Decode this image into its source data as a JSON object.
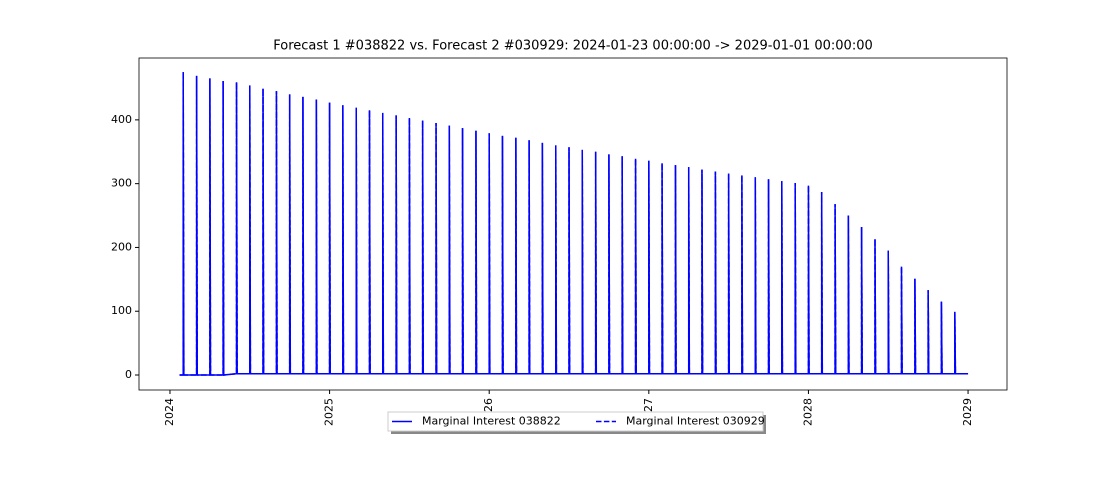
{
  "chart_data": {
    "type": "line",
    "title": "Forecast 1 #038822 vs. Forecast 2 #030929: 2024-01-23 00:00:00 -> 2029-01-01 00:00:00",
    "xlim": [
      2023.806,
      2029.244
    ],
    "ylim": [
      -23.5,
      497
    ],
    "xticks": [
      2024,
      2025,
      2026,
      2027,
      2028,
      2029
    ],
    "yticks": [
      0,
      100,
      200,
      300,
      400
    ],
    "legend": "lower center",
    "x": [
      2024.06,
      2024.083,
      2024.083,
      2024.087,
      2024.167,
      2024.167,
      2024.171,
      2024.25,
      2024.25,
      2024.254,
      2024.333,
      2024.333,
      2024.337,
      2024.417,
      2024.417,
      2024.421,
      2024.5,
      2024.5,
      2024.504,
      2024.583,
      2024.583,
      2024.587,
      2024.667,
      2024.667,
      2024.671,
      2024.75,
      2024.75,
      2024.754,
      2024.833,
      2024.833,
      2024.837,
      2024.917,
      2024.917,
      2024.921,
      2025,
      2025,
      2025.004,
      2025.083,
      2025.083,
      2025.087,
      2025.167,
      2025.167,
      2025.171,
      2025.25,
      2025.25,
      2025.254,
      2025.333,
      2025.333,
      2025.337,
      2025.417,
      2025.417,
      2025.421,
      2025.5,
      2025.5,
      2025.504,
      2025.583,
      2025.583,
      2025.587,
      2025.667,
      2025.667,
      2025.671,
      2025.75,
      2025.75,
      2025.754,
      2025.833,
      2025.833,
      2025.837,
      2025.917,
      2025.917,
      2025.921,
      2026,
      2026,
      2026.004,
      2026.083,
      2026.083,
      2026.087,
      2026.167,
      2026.167,
      2026.171,
      2026.25,
      2026.25,
      2026.254,
      2026.333,
      2026.333,
      2026.337,
      2026.417,
      2026.417,
      2026.421,
      2026.5,
      2026.5,
      2026.504,
      2026.583,
      2026.583,
      2026.587,
      2026.667,
      2026.667,
      2026.671,
      2026.75,
      2026.75,
      2026.754,
      2026.833,
      2026.833,
      2026.837,
      2026.917,
      2026.917,
      2026.921,
      2027,
      2027,
      2027.004,
      2027.083,
      2027.083,
      2027.087,
      2027.167,
      2027.167,
      2027.171,
      2027.25,
      2027.25,
      2027.254,
      2027.333,
      2027.333,
      2027.337,
      2027.417,
      2027.417,
      2027.421,
      2027.5,
      2027.5,
      2027.504,
      2027.583,
      2027.583,
      2027.587,
      2027.667,
      2027.667,
      2027.671,
      2027.75,
      2027.75,
      2027.754,
      2027.833,
      2027.833,
      2027.837,
      2027.917,
      2027.917,
      2027.921,
      2028,
      2028,
      2028.004,
      2028.083,
      2028.083,
      2028.087,
      2028.167,
      2028.167,
      2028.171,
      2028.25,
      2028.25,
      2028.254,
      2028.333,
      2028.333,
      2028.337,
      2028.417,
      2028.417,
      2028.421,
      2028.5,
      2028.5,
      2028.504,
      2028.583,
      2028.583,
      2028.587,
      2028.667,
      2028.667,
      2028.671,
      2028.75,
      2028.75,
      2028.754,
      2028.833,
      2028.833,
      2028.837,
      2028.917,
      2028.917,
      2028.921,
      2029
    ],
    "series": [
      {
        "name": "Marginal Interest 038822",
        "color": "#0000ff",
        "dash": false,
        "values": [
          0,
          0,
          475,
          0,
          0,
          469,
          0,
          0,
          465,
          0,
          0,
          461,
          0,
          2,
          459,
          2,
          2,
          454,
          2,
          2,
          449,
          2,
          2,
          445,
          2,
          2,
          440,
          2,
          2,
          436,
          2,
          2,
          432,
          2,
          2,
          427,
          2,
          2,
          423,
          2,
          2,
          419,
          2,
          2,
          415,
          2,
          2,
          411,
          2,
          2,
          407,
          2,
          2,
          403,
          2,
          2,
          399,
          2,
          2,
          395,
          2,
          2,
          391,
          2,
          2,
          387,
          2,
          2,
          383,
          2,
          2,
          379,
          2,
          2,
          375,
          2,
          2,
          372,
          2,
          2,
          368,
          2,
          2,
          364,
          2,
          2,
          360,
          2,
          2,
          357,
          2,
          2,
          353,
          2,
          2,
          350,
          2,
          2,
          346,
          2,
          2,
          343,
          2,
          2,
          339,
          2,
          2,
          336,
          2,
          2,
          332,
          2,
          2,
          329,
          2,
          2,
          326,
          2,
          2,
          322,
          2,
          2,
          319,
          2,
          2,
          316,
          2,
          2,
          313,
          2,
          2,
          310,
          2,
          2,
          307,
          2,
          2,
          304,
          2,
          2,
          301,
          2,
          2,
          297,
          2,
          2,
          287,
          2,
          2,
          268,
          2,
          2,
          250,
          2,
          2,
          232,
          2,
          2,
          213,
          2,
          2,
          195,
          2,
          2,
          170,
          2,
          2,
          151,
          2,
          2,
          133,
          2,
          2,
          115,
          2,
          2,
          99,
          2,
          2
        ]
      },
      {
        "name": "Marginal Interest 030929",
        "color": "#0000ff",
        "dash": true,
        "values": [
          0,
          0,
          475,
          0,
          0,
          469,
          0,
          0,
          465,
          0,
          0,
          461,
          0,
          2,
          459,
          2,
          2,
          454,
          2,
          2,
          449,
          2,
          2,
          445,
          2,
          2,
          440,
          2,
          2,
          436,
          2,
          2,
          432,
          2,
          2,
          427,
          2,
          2,
          423,
          2,
          2,
          419,
          2,
          2,
          415,
          2,
          2,
          411,
          2,
          2,
          407,
          2,
          2,
          403,
          2,
          2,
          399,
          2,
          2,
          395,
          2,
          2,
          391,
          2,
          2,
          387,
          2,
          2,
          383,
          2,
          2,
          379,
          2,
          2,
          375,
          2,
          2,
          372,
          2,
          2,
          368,
          2,
          2,
          364,
          2,
          2,
          360,
          2,
          2,
          357,
          2,
          2,
          353,
          2,
          2,
          350,
          2,
          2,
          346,
          2,
          2,
          343,
          2,
          2,
          339,
          2,
          2,
          336,
          2,
          2,
          332,
          2,
          2,
          329,
          2,
          2,
          326,
          2,
          2,
          322,
          2,
          2,
          319,
          2,
          2,
          316,
          2,
          2,
          313,
          2,
          2,
          310,
          2,
          2,
          307,
          2,
          2,
          304,
          2,
          2,
          301,
          2,
          2,
          297,
          2,
          2,
          287,
          2,
          2,
          268,
          2,
          2,
          250,
          2,
          2,
          232,
          2,
          2,
          213,
          2,
          2,
          195,
          2,
          2,
          170,
          2,
          2,
          151,
          2,
          2,
          133,
          2,
          2,
          115,
          2,
          2,
          99,
          2,
          2
        ]
      }
    ]
  }
}
